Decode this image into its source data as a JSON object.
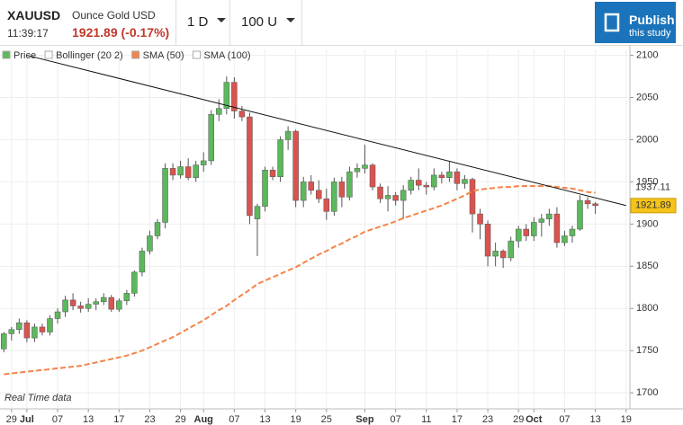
{
  "header": {
    "symbol": "XAUUSD",
    "description": "Ounce Gold USD",
    "time": "11:39:17",
    "quote": "1921.89 (-0.17%)",
    "interval": "1 D",
    "range": "100 U",
    "publish": "Publish",
    "publish_sub": "this study"
  },
  "chart_data": {
    "type": "candlestick",
    "categories": [
      null,
      "29",
      null,
      "Jul",
      null,
      null,
      null,
      "07",
      null,
      null,
      null,
      "13",
      null,
      null,
      null,
      "17",
      null,
      null,
      null,
      "23",
      null,
      null,
      null,
      "29",
      null,
      null,
      "Aug",
      null,
      null,
      null,
      "07",
      null,
      null,
      null,
      "13",
      null,
      null,
      null,
      "19",
      null,
      null,
      null,
      "25",
      null,
      null,
      null,
      null,
      "Sep",
      null,
      null,
      null,
      "07",
      null,
      null,
      null,
      "11",
      null,
      null,
      null,
      "17",
      null,
      null,
      null,
      "23",
      null,
      null,
      null,
      "29",
      null,
      "Oct",
      null,
      null,
      null,
      "07",
      null,
      null,
      null,
      "13",
      null,
      null,
      null,
      "19"
    ],
    "series": [
      {
        "name": "Price",
        "up_color": "#5cb85c",
        "down_color": "#d9534f",
        "open": [
          1752,
          1770,
          1775,
          1783,
          1765,
          1778,
          1772,
          1788,
          1796,
          1810,
          1803,
          1800,
          1805,
          1808,
          1813,
          1799,
          1809,
          1818,
          1843,
          1868,
          1886,
          1902,
          1966,
          1958,
          1968,
          1955,
          1970,
          1975,
          2030,
          2037,
          2068,
          2034,
          2027,
          1906,
          1921,
          1964,
          1956,
          2000,
          2010,
          1928,
          1950,
          1940,
          1930,
          1915,
          1950,
          1932,
          1962,
          1966,
          1970,
          1944,
          1930,
          1934,
          1928,
          1940,
          1952,
          1946,
          1944,
          1958,
          1955,
          1962,
          1948,
          1953,
          1912,
          1900,
          1862,
          1868,
          1860,
          1880,
          1894,
          1886,
          1902,
          1906,
          1912,
          1878,
          1886,
          1894,
          1928,
          1924,
          null,
          null,
          null,
          null
        ],
        "high": [
          1772,
          1778,
          1788,
          1786,
          1782,
          1782,
          1792,
          1800,
          1815,
          1818,
          1808,
          1812,
          1812,
          1818,
          1816,
          1812,
          1822,
          1845,
          1872,
          1892,
          1906,
          1972,
          1972,
          1975,
          1978,
          1975,
          1985,
          2035,
          2048,
          2075,
          2074,
          2040,
          2032,
          1924,
          1968,
          1968,
          2004,
          2016,
          2012,
          1956,
          1958,
          1952,
          1942,
          1955,
          1956,
          1968,
          1972,
          1994,
          1972,
          1948,
          1945,
          1938,
          1946,
          1956,
          1966,
          1950,
          1966,
          1962,
          1975,
          1966,
          1958,
          1955,
          1918,
          1904,
          1878,
          1870,
          1885,
          1898,
          1900,
          1908,
          1912,
          1918,
          1920,
          1892,
          1898,
          1934,
          1932,
          1926,
          null,
          null,
          null,
          null
        ],
        "low": [
          1748,
          1762,
          1770,
          1760,
          1760,
          1768,
          1768,
          1782,
          1790,
          1798,
          1795,
          1796,
          1798,
          1804,
          1796,
          1796,
          1804,
          1814,
          1838,
          1864,
          1882,
          1895,
          1952,
          1954,
          1952,
          1950,
          1962,
          1970,
          2022,
          2030,
          2025,
          2022,
          1900,
          1862,
          1915,
          1952,
          1950,
          1988,
          1920,
          1920,
          1935,
          1925,
          1905,
          1910,
          1920,
          1928,
          1955,
          1960,
          1940,
          1925,
          1915,
          1922,
          1906,
          1935,
          1940,
          1935,
          1940,
          1948,
          1950,
          1940,
          1942,
          1890,
          1882,
          1850,
          1850,
          1848,
          1856,
          1872,
          1880,
          1880,
          1885,
          1898,
          1872,
          1874,
          1878,
          1892,
          1918,
          1912,
          null,
          null,
          null,
          null
        ],
        "close": [
          1770,
          1775,
          1783,
          1765,
          1778,
          1772,
          1788,
          1796,
          1810,
          1803,
          1800,
          1805,
          1808,
          1813,
          1799,
          1809,
          1818,
          1843,
          1868,
          1886,
          1902,
          1966,
          1958,
          1968,
          1955,
          1970,
          1975,
          2030,
          2037,
          2068,
          2034,
          2027,
          1910,
          1921,
          1964,
          1956,
          2000,
          2010,
          1928,
          1950,
          1940,
          1930,
          1915,
          1950,
          1932,
          1962,
          1966,
          1970,
          1944,
          1930,
          1934,
          1928,
          1940,
          1952,
          1946,
          1944,
          1958,
          1955,
          1962,
          1948,
          1953,
          1912,
          1900,
          1862,
          1868,
          1860,
          1880,
          1894,
          1886,
          1902,
          1906,
          1912,
          1878,
          1886,
          1894,
          1928,
          1924,
          1921.89,
          null,
          null,
          null,
          null
        ]
      },
      {
        "name": "Bollinger (20 2)"
      },
      {
        "name": "SMA (50)",
        "color": "#f4834a",
        "values": [
          1722,
          1723,
          1724,
          1725,
          1726,
          1727,
          1728,
          1729,
          1730,
          1731,
          1732,
          1734,
          1736,
          1738,
          1740,
          1742,
          1744,
          1747,
          1750,
          1754,
          1758,
          1762,
          1766,
          1771,
          1776,
          1781,
          1786,
          1792,
          1798,
          1803,
          1810,
          1816,
          1822,
          1829,
          1833,
          1837,
          1841,
          1845,
          1849,
          1854,
          1859,
          1864,
          1868,
          1873,
          1877,
          1882,
          1886,
          1891,
          1894,
          1897,
          1900,
          1903,
          1907,
          1910,
          1913,
          1916,
          1919,
          1922,
          1926,
          1930,
          1934,
          1939,
          1941,
          1942,
          1943,
          1944,
          1944,
          1945,
          1945,
          1945,
          1945,
          1945,
          1944,
          1943,
          1942,
          1940,
          1938,
          1937.11,
          null,
          null,
          null,
          null
        ]
      },
      {
        "name": "SMA (100)"
      }
    ],
    "trendline": {
      "start": [
        3,
        2100
      ],
      "end": [
        81,
        1922
      ]
    },
    "ylim": [
      1681,
      2107
    ],
    "yticks": [
      1700,
      1750,
      1800,
      1850,
      1900,
      1950,
      2000,
      2050,
      2100
    ],
    "grid": true,
    "note": "Real Time data"
  }
}
